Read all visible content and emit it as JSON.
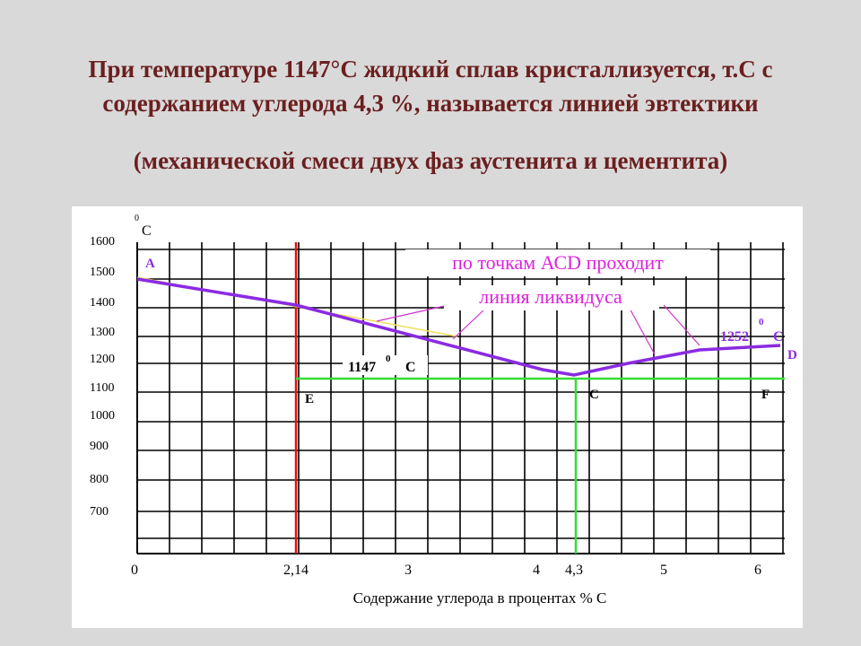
{
  "header": {
    "lines": [
      "При температуре 1147°С жидкий сплав  кристаллизуется,    т.С с",
      "содержанием углерода 4,3 %, называется  линией эвтектики",
      "(механической смеси двух фаз аустенита и цементита)"
    ]
  },
  "diagram": {
    "y_unit_degree": "0",
    "y_unit": "С",
    "y_labels": [
      "1600",
      "1500",
      "1400",
      "1300",
      "1200",
      "1100",
      "1000",
      "900",
      "800",
      "700"
    ],
    "x_labels": [
      "0",
      "2,14",
      "3",
      "4",
      "4,3",
      "5",
      "6"
    ],
    "x_title": "Содержание  углерода  в  процентах   % С",
    "points": [
      "A",
      "E",
      "C",
      "F",
      "D"
    ],
    "note_lines": [
      "по  точкам АСD  проходит",
      "линия  ликвидуса"
    ],
    "eutectic_label": {
      "value": "1147",
      "degree": "0",
      "unit": "С"
    },
    "d_label": {
      "value": "1252",
      "degree": "0",
      "unit": "С"
    }
  }
}
